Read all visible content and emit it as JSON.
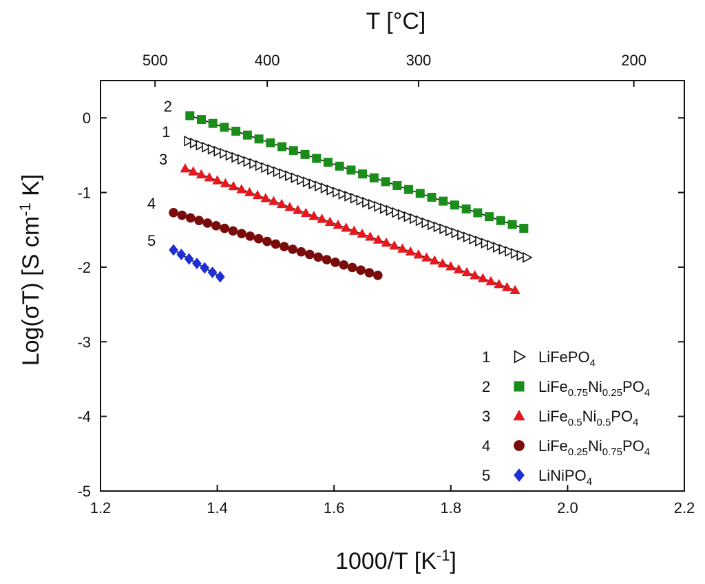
{
  "chart_data": {
    "type": "scatter",
    "title": "",
    "xlabel": "1000/T [K",
    "xlabel_sup": "-1",
    "xlabel_end": "]",
    "ylabel": "Log(σT) [S cm",
    "ylabel_sup": "-1",
    "ylabel_end": " K]",
    "top_xlabel": "T [°C]",
    "xlim": [
      1.2,
      2.2
    ],
    "ylim": [
      -5,
      0.5
    ],
    "x_ticks": [
      1.2,
      1.4,
      1.6,
      1.8,
      2.0,
      2.2
    ],
    "x_tick_labels": [
      "1.2",
      "1.4",
      "1.6",
      "1.8",
      "2.0",
      "2.2"
    ],
    "y_ticks": [
      0,
      -1,
      -2,
      -3,
      -4,
      -5
    ],
    "y_tick_labels": [
      "0",
      "-1",
      "-2",
      "-3",
      "-4",
      "-5"
    ],
    "top_ticks_celsius": [
      500,
      400,
      300,
      200
    ],
    "top_tick_labels": [
      "500",
      "400",
      "300",
      "200"
    ],
    "grid": false,
    "legend_position": "bottom-right",
    "series": [
      {
        "id": "1",
        "name": "LiFePO4",
        "name_parts": [
          "LiFePO",
          "4",
          "",
          "",
          "",
          ""
        ],
        "marker": "triangle-right",
        "color": "#111111",
        "x_start": 1.35,
        "x_end": 1.93,
        "y_start": -0.31,
        "y_end": -1.87,
        "n_points": 58
      },
      {
        "id": "2",
        "name": "LiFe0.75Ni0.25PO4",
        "name_parts": [
          "LiFe",
          "0.75",
          "Ni",
          "0.25",
          "PO",
          "4"
        ],
        "marker": "square",
        "color": "#1a8c1a",
        "x_start": 1.353,
        "x_end": 1.925,
        "y_start": 0.03,
        "y_end": -1.48,
        "n_points": 30
      },
      {
        "id": "3",
        "name": "LiFe0.5Ni0.5PO4",
        "name_parts": [
          "LiFe",
          "0.5",
          "Ni",
          "0.5",
          "PO",
          "4"
        ],
        "marker": "triangle-up",
        "color": "#e8171d",
        "x_start": 1.345,
        "x_end": 1.91,
        "y_start": -0.68,
        "y_end": -2.31,
        "n_points": 42
      },
      {
        "id": "4",
        "name": "LiFe0.25Ni0.75PO4",
        "name_parts": [
          "LiFe",
          "0.25",
          "Ni",
          "0.75",
          "PO",
          "4"
        ],
        "marker": "circle",
        "color": "#7a0b0b",
        "x_start": 1.325,
        "x_end": 1.675,
        "y_start": -1.27,
        "y_end": -2.11,
        "n_points": 25
      },
      {
        "id": "5",
        "name": "LiNiPO4",
        "name_parts": [
          "LiNiPO",
          "4",
          "",
          "",
          "",
          ""
        ],
        "marker": "diamond",
        "color": "#1f2fd6",
        "x_start": 1.325,
        "x_end": 1.405,
        "y_start": -1.77,
        "y_end": -2.13,
        "n_points": 7
      }
    ]
  }
}
